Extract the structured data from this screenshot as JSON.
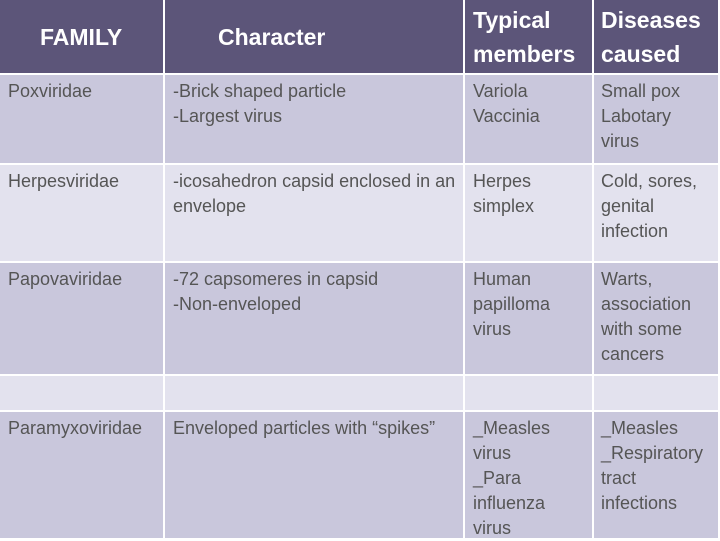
{
  "table": {
    "header": [
      [
        "FAMILY"
      ],
      [
        "Character"
      ],
      [
        "Typical",
        "members"
      ],
      [
        "Diseases",
        "caused"
      ]
    ],
    "rows": [
      [
        [
          "Poxviridae"
        ],
        [
          "-Brick shaped particle",
          "-Largest virus"
        ],
        [
          "Variola",
          "Vaccinia"
        ],
        [
          "Small pox",
          "Labotary",
          "virus"
        ]
      ],
      [
        [
          "Herpesviridae"
        ],
        [
          "-icosahedron capsid enclosed in an",
          "envelope"
        ],
        [
          "Herpes",
          "simplex"
        ],
        [
          "Cold, sores,",
          "genital",
          "infection"
        ]
      ],
      [
        [
          "Papovaviridae"
        ],
        [
          "-72 capsomeres in capsid",
          "-Non-enveloped"
        ],
        [
          "Human",
          "papilloma",
          "virus"
        ],
        [
          "Warts,",
          "association",
          "with some",
          "cancers"
        ]
      ],
      [
        [
          "Paramyxoviridae"
        ],
        [
          "Enveloped particles with “spikes”"
        ],
        [
          "_Measles",
          "virus",
          "_Para",
          "influenza",
          "virus"
        ],
        [
          "_Measles",
          "_Respiratory",
          "tract",
          "infections"
        ]
      ]
    ]
  }
}
